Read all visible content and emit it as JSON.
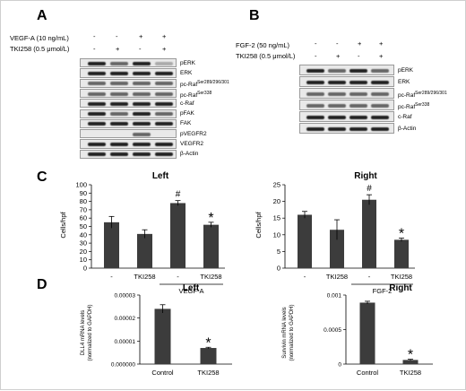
{
  "panels": {
    "A": {
      "label": "A",
      "conditions": [
        {
          "name": "VEGF-A (10 ng/mL)",
          "signs": [
            "-",
            "-",
            "+",
            "+"
          ]
        },
        {
          "name": "TKI258 (0.5 μmol/L)",
          "signs": [
            "-",
            "+",
            "-",
            "+"
          ]
        }
      ],
      "rows": [
        {
          "label": "pERK",
          "sup": ""
        },
        {
          "label": "ERK",
          "sup": ""
        },
        {
          "label": "pc-Raf",
          "sup": "Ser289/296/301"
        },
        {
          "label": "pc-Raf",
          "sup": "Ser338"
        },
        {
          "label": "c-Raf",
          "sup": ""
        },
        {
          "label": "pFAK",
          "sup": ""
        },
        {
          "label": "FAK",
          "sup": ""
        },
        {
          "label": "pVEGFR2",
          "sup": ""
        },
        {
          "label": "VEGFR2",
          "sup": ""
        },
        {
          "label": "β-Actin",
          "sup": ""
        }
      ]
    },
    "B": {
      "label": "B",
      "conditions": [
        {
          "name": "FGF-2 (50 ng/mL)",
          "signs": [
            "-",
            "-",
            "+",
            "+"
          ]
        },
        {
          "name": "TKI258 (0.5 μmol/L)",
          "signs": [
            "-",
            "+",
            "-",
            "+"
          ]
        }
      ],
      "rows": [
        {
          "label": "pERK",
          "sup": ""
        },
        {
          "label": "ERK",
          "sup": ""
        },
        {
          "label": "pc-Raf",
          "sup": "Ser289/296/301"
        },
        {
          "label": "pc-Raf",
          "sup": "Ser338"
        },
        {
          "label": "c-Raf",
          "sup": ""
        },
        {
          "label": "β-Actin",
          "sup": ""
        }
      ]
    },
    "C": {
      "label": "C"
    },
    "D": {
      "label": "D"
    }
  },
  "chart_data": [
    {
      "id": "C-left",
      "type": "bar",
      "title": "Left",
      "ylabel": "Cells/hpf",
      "ylim": [
        0,
        100
      ],
      "yticks": [
        0,
        10,
        20,
        30,
        40,
        50,
        60,
        70,
        80,
        90,
        100
      ],
      "categories": [
        "-",
        "TKI258",
        "-",
        "TKI258"
      ],
      "values": [
        55,
        41,
        78,
        52
      ],
      "errors": [
        7,
        5,
        3,
        3
      ],
      "markers": [
        "",
        "",
        "#",
        "*"
      ],
      "group_label": "VEGF-A"
    },
    {
      "id": "C-right",
      "type": "bar",
      "title": "Right",
      "ylabel": "Cells/hpf",
      "ylim": [
        0,
        25
      ],
      "yticks": [
        0,
        5,
        10,
        15,
        20,
        25
      ],
      "categories": [
        "-",
        "TKI258",
        "-",
        "TKI258"
      ],
      "values": [
        16,
        11.5,
        20.5,
        8.5
      ],
      "errors": [
        1,
        3,
        1.5,
        0.5
      ],
      "markers": [
        "",
        "",
        "#",
        "*"
      ],
      "group_label": "FGF-2"
    },
    {
      "id": "D-left",
      "type": "bar",
      "title": "Left",
      "ylabel": "DLL4 mRNA levels",
      "ylabel2": "(normalized to GAPDH)",
      "ylim": [
        0,
        3e-05
      ],
      "yticks": [
        0,
        1e-05,
        2e-05,
        3e-05
      ],
      "yticklabels": [
        "0.000000",
        "0.00001",
        "0.00002",
        "0.00003"
      ],
      "categories": [
        "Control",
        "TKI258"
      ],
      "values": [
        2.4e-05,
        7e-06
      ],
      "errors": [
        1.8e-06,
        3e-07
      ],
      "markers": [
        "",
        "*"
      ]
    },
    {
      "id": "D-right",
      "type": "bar",
      "title": "Right",
      "ylabel": "Survivin mRNA levels",
      "ylabel2": "(normalized to GAPDH)",
      "ylim": [
        0,
        0.001
      ],
      "yticks": [
        0,
        0.0005,
        0.001
      ],
      "yticklabels": [
        "0",
        "0.0005",
        "0.001"
      ],
      "categories": [
        "Control",
        "TKI258"
      ],
      "values": [
        0.00089,
        6e-05
      ],
      "errors": [
        2e-05,
        1e-05
      ],
      "markers": [
        "",
        "*"
      ]
    }
  ]
}
